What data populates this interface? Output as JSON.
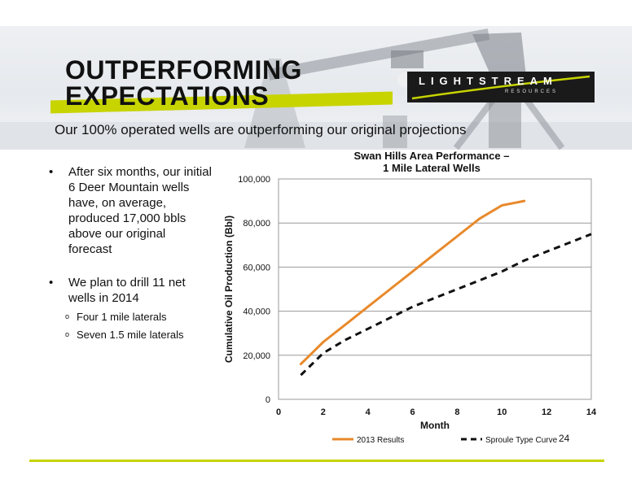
{
  "slide": {
    "title_line1": "OUTPERFORMING",
    "title_line2": "EXPECTATIONS",
    "subtitle": "Our 100% operated wells are outperforming our original projections",
    "page_number": "24",
    "accent_color": "#c8d400"
  },
  "logo": {
    "name": "LIGHTSTREAM",
    "tagline": "RESOURCES"
  },
  "bullets": [
    {
      "text": "After six months, our initial 6 Deer Mountain wells have, on average, produced 17,000 bbls above our original forecast",
      "subitems": []
    },
    {
      "text": "We plan to drill 11 net wells in 2014",
      "subitems": [
        "Four 1 mile laterals",
        "Seven 1.5 mile laterals"
      ]
    }
  ],
  "chart_data": {
    "type": "line",
    "title": "Swan Hills Area Performance – 1 Mile Lateral Wells",
    "title_line1": "Swan Hills Area Performance –",
    "title_line2": "1 Mile Lateral Wells",
    "xlabel": "Month",
    "ylabel": "Cumulative Oil Production (Bbl)",
    "xlim": [
      0,
      14
    ],
    "ylim": [
      0,
      100000
    ],
    "x_ticks": [
      0,
      2,
      4,
      6,
      8,
      10,
      12,
      14
    ],
    "y_ticks": [
      0,
      20000,
      40000,
      60000,
      80000,
      100000
    ],
    "x_tick_labels": [
      "0",
      "2",
      "4",
      "6",
      "8",
      "10",
      "12",
      "14"
    ],
    "y_tick_labels": [
      "0",
      "20,000",
      "40,000",
      "60,000",
      "80,000",
      "100,000"
    ],
    "grid": "horizontal",
    "legend_position": "bottom",
    "series": [
      {
        "name": "2013 Results",
        "color": "#e8892b",
        "style": "solid",
        "x": [
          1,
          2,
          3,
          4,
          5,
          6,
          7,
          8,
          9,
          10,
          11
        ],
        "y": [
          16000,
          26000,
          34000,
          42000,
          50000,
          58000,
          66000,
          74000,
          82000,
          88000,
          90000
        ]
      },
      {
        "name": "Sproule Type Curve",
        "color": "#111111",
        "style": "dashed",
        "x": [
          1,
          2,
          3,
          4,
          5,
          6,
          7,
          8,
          9,
          10,
          11,
          12,
          13,
          14
        ],
        "y": [
          11000,
          21000,
          27000,
          32000,
          37000,
          42000,
          46000,
          50000,
          54000,
          58000,
          63000,
          67000,
          71000,
          75000
        ]
      }
    ]
  }
}
